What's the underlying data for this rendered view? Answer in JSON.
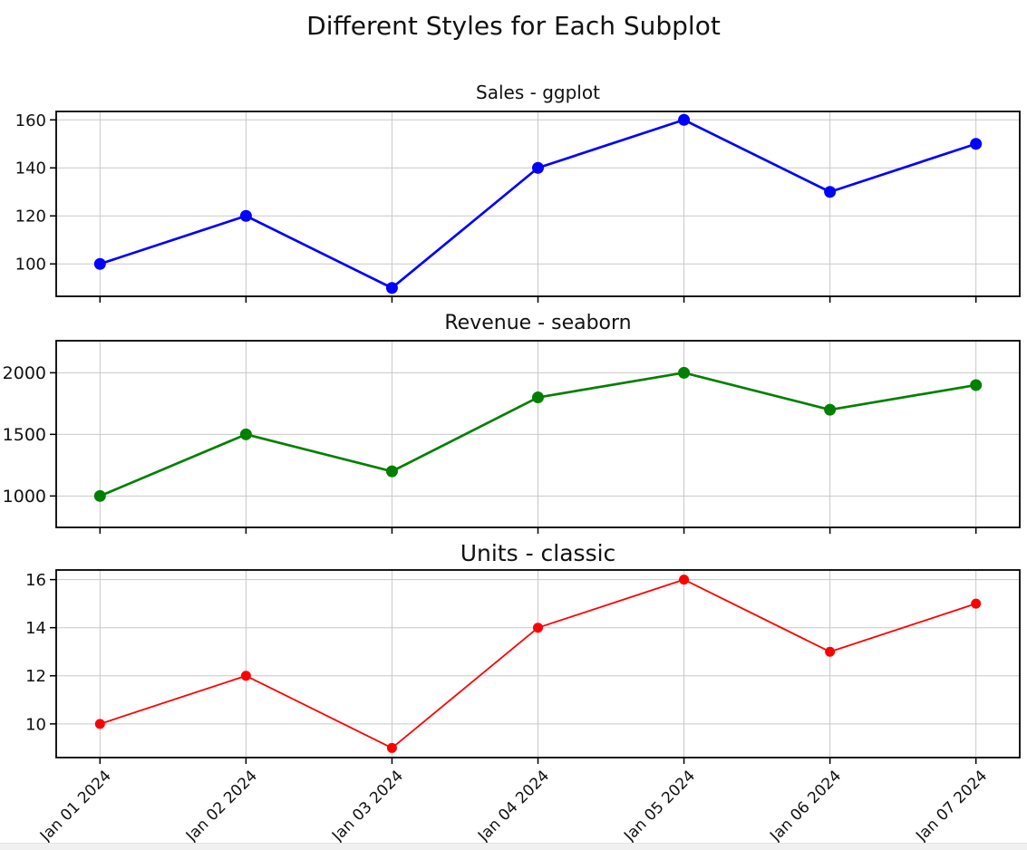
{
  "figure": {
    "title": "Different Styles for Each Subplot",
    "background_color": "#ffffff",
    "text_color": "#111111"
  },
  "chart_data": [
    {
      "type": "line",
      "title": "Sales - ggplot",
      "categories": [
        "Jan 01 2024",
        "Jan 02 2024",
        "Jan 03 2024",
        "Jan 04 2024",
        "Jan 05 2024",
        "Jan 06 2024",
        "Jan 07 2024"
      ],
      "series": [
        {
          "name": "Sales",
          "values": [
            100,
            120,
            90,
            140,
            160,
            130,
            150
          ],
          "color": "#0000ff"
        }
      ],
      "yticks": [
        100,
        120,
        140,
        160
      ],
      "ylim": [
        86.5,
        163.5
      ],
      "grid": true,
      "grid_color": "#c8c8c8",
      "spine_color": "#000000",
      "x_tick_labels_visible": false,
      "legend": "none"
    },
    {
      "type": "line",
      "title": "Revenue - seaborn",
      "categories": [
        "Jan 01 2024",
        "Jan 02 2024",
        "Jan 03 2024",
        "Jan 04 2024",
        "Jan 05 2024",
        "Jan 06 2024",
        "Jan 07 2024"
      ],
      "series": [
        {
          "name": "Revenue",
          "values": [
            1000,
            1500,
            1200,
            1800,
            2000,
            1700,
            1900
          ],
          "color": "#008000"
        }
      ],
      "yticks": [
        1000,
        1500,
        2000
      ],
      "ylim": [
        745,
        2260
      ],
      "grid": true,
      "grid_color": "#c8c8c8",
      "spine_color": "#000000",
      "x_tick_labels_visible": false,
      "legend": "none"
    },
    {
      "type": "line",
      "title": "Units - classic",
      "categories": [
        "Jan 01 2024",
        "Jan 02 2024",
        "Jan 03 2024",
        "Jan 04 2024",
        "Jan 05 2024",
        "Jan 06 2024",
        "Jan 07 2024"
      ],
      "series": [
        {
          "name": "Units",
          "values": [
            10,
            12,
            9,
            14,
            16,
            13,
            15
          ],
          "color": "#ff0000"
        }
      ],
      "yticks": [
        10,
        12,
        14,
        16
      ],
      "ylim": [
        8.6,
        16.4
      ],
      "grid": true,
      "grid_color": "#c8c8c8",
      "spine_color": "#000000",
      "x_tick_labels_visible": true,
      "x_label_rotation": -45,
      "legend": "none"
    }
  ]
}
